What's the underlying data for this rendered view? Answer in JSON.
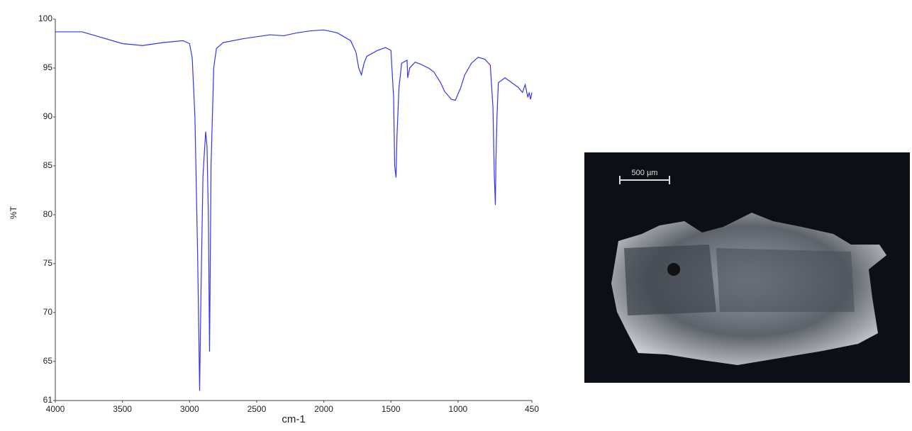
{
  "chart_data": {
    "type": "line",
    "xlabel": "cm-1",
    "ylabel": "%T",
    "xlim": [
      4000,
      450
    ],
    "xticks": [
      4000,
      3500,
      3000,
      2500,
      2000,
      1500,
      1000,
      450
    ],
    "ylim": [
      61,
      100
    ],
    "yticks": [
      61,
      65,
      70,
      75,
      80,
      85,
      90,
      95,
      100
    ],
    "grid": false,
    "color": "#3434f2",
    "x": [
      4000,
      3800,
      3700,
      3500,
      3350,
      3200,
      3050,
      3000,
      2980,
      2960,
      2940,
      2925,
      2915,
      2900,
      2880,
      2870,
      2860,
      2851,
      2840,
      2820,
      2800,
      2750,
      2600,
      2400,
      2300,
      2200,
      2100,
      2000,
      1900,
      1800,
      1760,
      1740,
      1720,
      1700,
      1680,
      1600,
      1540,
      1500,
      1480,
      1472,
      1462,
      1455,
      1440,
      1420,
      1380,
      1375,
      1360,
      1320,
      1280,
      1220,
      1180,
      1130,
      1100,
      1050,
      1020,
      980,
      950,
      900,
      850,
      800,
      760,
      740,
      730,
      722,
      718,
      710,
      700,
      650,
      600,
      550,
      520,
      500,
      480,
      470,
      460,
      450
    ],
    "values": [
      98.7,
      98.7,
      98.3,
      97.5,
      97.3,
      97.6,
      97.8,
      97.5,
      96,
      90,
      76,
      62,
      72,
      84,
      88.5,
      87,
      80,
      66,
      85,
      95,
      97,
      97.6,
      98,
      98.4,
      98.3,
      98.6,
      98.8,
      98.9,
      98.6,
      97.8,
      96.6,
      95,
      94.3,
      95.5,
      96.2,
      96.8,
      97.1,
      96.8,
      92,
      85,
      83.8,
      88,
      93,
      95.5,
      95.8,
      94,
      95,
      95.6,
      95.4,
      95,
      94.6,
      93.5,
      92.6,
      91.8,
      91.7,
      93,
      94.3,
      95.5,
      96.1,
      95.9,
      95.3,
      91,
      84,
      81,
      85.5,
      90,
      93.5,
      94,
      93.5,
      93,
      92.5,
      93.3,
      92,
      92.5,
      91.8,
      92.5
    ]
  },
  "photo": {
    "scale_bar_label": "500 µm"
  }
}
